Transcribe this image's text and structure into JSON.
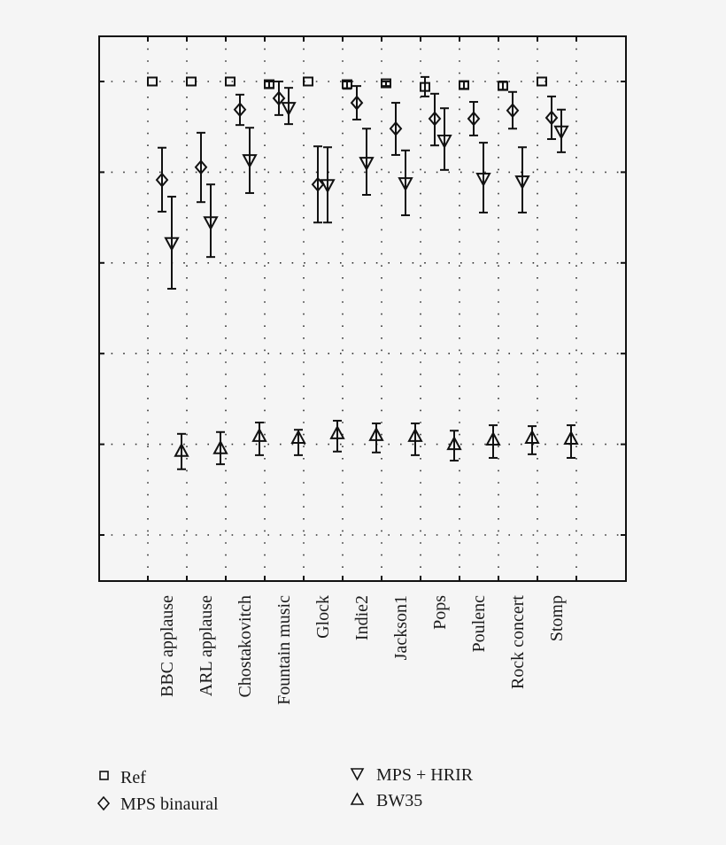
{
  "chart_data": {
    "type": "scatter",
    "subtype": "errorbar",
    "title": "",
    "xlabel": "",
    "ylabel": "",
    "y_tick_labels_visible": false,
    "ylim": [
      -10,
      110
    ],
    "y_gridlines": [
      0,
      20,
      40,
      60,
      80,
      100
    ],
    "grid": true,
    "categories": [
      "BBC applause",
      "ARL applause",
      "Chostakovitch",
      "Fountain music",
      "Glock",
      "Indie2",
      "Jackson1",
      "Pops",
      "Poulenc",
      "Rock concert",
      "Stomp"
    ],
    "series": [
      {
        "name": "Ref",
        "marker": "square",
        "values": [
          100,
          100,
          100,
          99.4,
          100,
          99.4,
          99.6,
          98.8,
          99.2,
          99.0,
          100
        ],
        "ci_low": [
          99.6,
          99.6,
          99.6,
          98.6,
          99.6,
          98.4,
          99.0,
          96.7,
          98.4,
          98.2,
          99.6
        ],
        "ci_high": [
          100,
          100,
          100,
          100,
          100,
          100,
          100,
          101.0,
          100,
          100,
          100
        ]
      },
      {
        "name": "MPS binaural",
        "marker": "diamond",
        "values": [
          78.3,
          81.1,
          93.8,
          96.3,
          77.3,
          95.3,
          89.6,
          91.8,
          91.8,
          93.6,
          92.0
        ],
        "ci_low": [
          71.3,
          73.4,
          90.4,
          92.6,
          68.9,
          91.6,
          83.8,
          85.9,
          88.1,
          89.6,
          87.3
        ],
        "ci_high": [
          85.4,
          88.7,
          97.1,
          100.0,
          85.7,
          99.0,
          95.3,
          97.3,
          95.5,
          97.7,
          96.7
        ]
      },
      {
        "name": "MPS + HRIR",
        "marker": "triangle-down",
        "values": [
          64.5,
          69.1,
          82.8,
          94.3,
          77.3,
          82.2,
          77.7,
          87.1,
          78.7,
          78.1,
          89.1
        ],
        "ci_low": [
          54.3,
          61.3,
          75.4,
          90.6,
          68.9,
          75.0,
          70.5,
          80.5,
          71.1,
          71.1,
          84.4
        ],
        "ci_high": [
          74.6,
          77.3,
          89.8,
          98.6,
          85.5,
          89.6,
          84.8,
          94.1,
          86.5,
          85.5,
          93.8
        ]
      },
      {
        "name": "BW35",
        "marker": "triangle-up",
        "values": [
          18.4,
          19.0,
          21.7,
          21.3,
          22.3,
          21.9,
          21.7,
          19.9,
          20.9,
          21.3,
          21.1
        ],
        "ci_low": [
          14.5,
          15.6,
          17.6,
          17.6,
          18.4,
          18.2,
          17.6,
          16.4,
          17.0,
          17.8,
          17.0
        ],
        "ci_high": [
          22.3,
          22.7,
          24.8,
          23.2,
          25.2,
          24.6,
          24.6,
          23.0,
          24.2,
          24.0,
          24.2
        ]
      }
    ],
    "legend": {
      "position": "below",
      "entries": [
        {
          "label": "Ref",
          "marker": "square"
        },
        {
          "label": "MPS binaural",
          "marker": "diamond"
        },
        {
          "label": "MPS + HRIR",
          "marker": "triangle-down"
        },
        {
          "label": "BW35",
          "marker": "triangle-up"
        }
      ]
    }
  },
  "legend": {
    "ref": "Ref",
    "mps_binaural": "MPS binaural",
    "mps_hrir": "MPS + HRIR",
    "bw35": "BW35"
  },
  "colors": {
    "ink": "#111111",
    "background": "#f5f5f5",
    "grid": "#333333"
  }
}
